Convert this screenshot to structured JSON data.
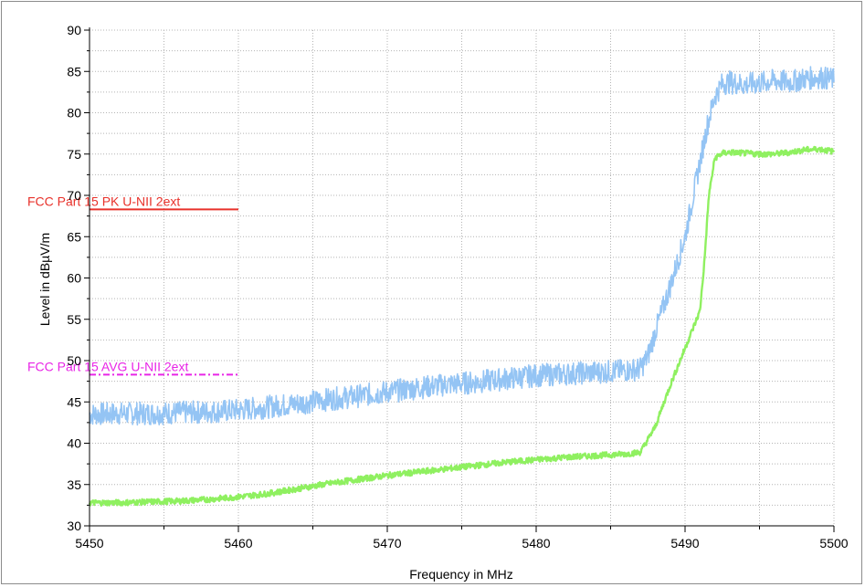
{
  "chart_data": {
    "type": "line",
    "title": "",
    "xlabel": "Frequency in MHz",
    "ylabel": "Level in dBµV/m",
    "xlim": [
      5450,
      5500
    ],
    "ylim": [
      30,
      90
    ],
    "x_ticks": [
      5450,
      5460,
      5470,
      5480,
      5490,
      5500
    ],
    "x_tick_labels": [
      "5450",
      "5460",
      "5470",
      "5480",
      "5490",
      "5500"
    ],
    "y_ticks": [
      30,
      35,
      40,
      45,
      50,
      55,
      60,
      65,
      70,
      75,
      80,
      85,
      90
    ],
    "y_tick_labels": [
      "30",
      "35",
      "40",
      "45",
      "50",
      "55",
      "60",
      "65",
      "70",
      "75",
      "80",
      "85",
      "90"
    ],
    "grid": true,
    "limit_lines": [
      {
        "name": "FCC Part 15 PK U-NII 2ext",
        "x_start": 5450,
        "x_end": 5460,
        "y": 68.3,
        "color": "#e8312a",
        "style": "solid"
      },
      {
        "name": "FCC Part 15 AVG U-NII 2ext",
        "x_start": 5450,
        "x_end": 5460,
        "y": 48.3,
        "color": "#e825e6",
        "style": "dashdot"
      }
    ],
    "series": [
      {
        "color": "#94c4f4",
        "x": [
          5450,
          5452,
          5454,
          5456,
          5458,
          5460,
          5462,
          5464,
          5466,
          5468,
          5470,
          5472,
          5474,
          5476,
          5478,
          5480,
          5482,
          5484,
          5486,
          5487,
          5487.5,
          5488,
          5489,
          5490,
          5491,
          5491.5,
          5492,
          5492.5,
          5493,
          5494,
          5495,
          5496,
          5497,
          5498,
          5499,
          5500
        ],
        "values": [
          43.5,
          43.6,
          43.6,
          43.7,
          43.8,
          44.0,
          44.4,
          44.8,
          45.3,
          45.7,
          46.2,
          46.7,
          47.1,
          47.4,
          47.8,
          48.2,
          48.4,
          48.6,
          48.8,
          49.0,
          50.5,
          53.5,
          59.0,
          65.0,
          74.0,
          78.5,
          82.0,
          83.5,
          83.7,
          83.4,
          83.6,
          83.9,
          83.7,
          84.1,
          84.3,
          84.0
        ]
      },
      {
        "color": "#8ff060",
        "x": [
          5450,
          5452,
          5454,
          5456,
          5458,
          5460,
          5462,
          5464,
          5466,
          5468,
          5470,
          5472,
          5474,
          5476,
          5478,
          5480,
          5482,
          5484,
          5486,
          5487,
          5488,
          5489,
          5490,
          5491,
          5491.3,
          5491.6,
          5492,
          5492.5,
          5493,
          5494,
          5495,
          5496,
          5497,
          5498,
          5499,
          5500
        ],
        "values": [
          32.8,
          32.8,
          32.9,
          33.0,
          33.2,
          33.5,
          33.9,
          34.5,
          35.1,
          35.6,
          36.1,
          36.5,
          36.9,
          37.3,
          37.7,
          38.0,
          38.3,
          38.5,
          38.7,
          38.9,
          42.0,
          47.0,
          51.5,
          56.0,
          62.0,
          70.0,
          74.5,
          75.1,
          75.2,
          75.1,
          75.0,
          75.0,
          75.2,
          75.5,
          75.6,
          75.3
        ]
      }
    ]
  }
}
